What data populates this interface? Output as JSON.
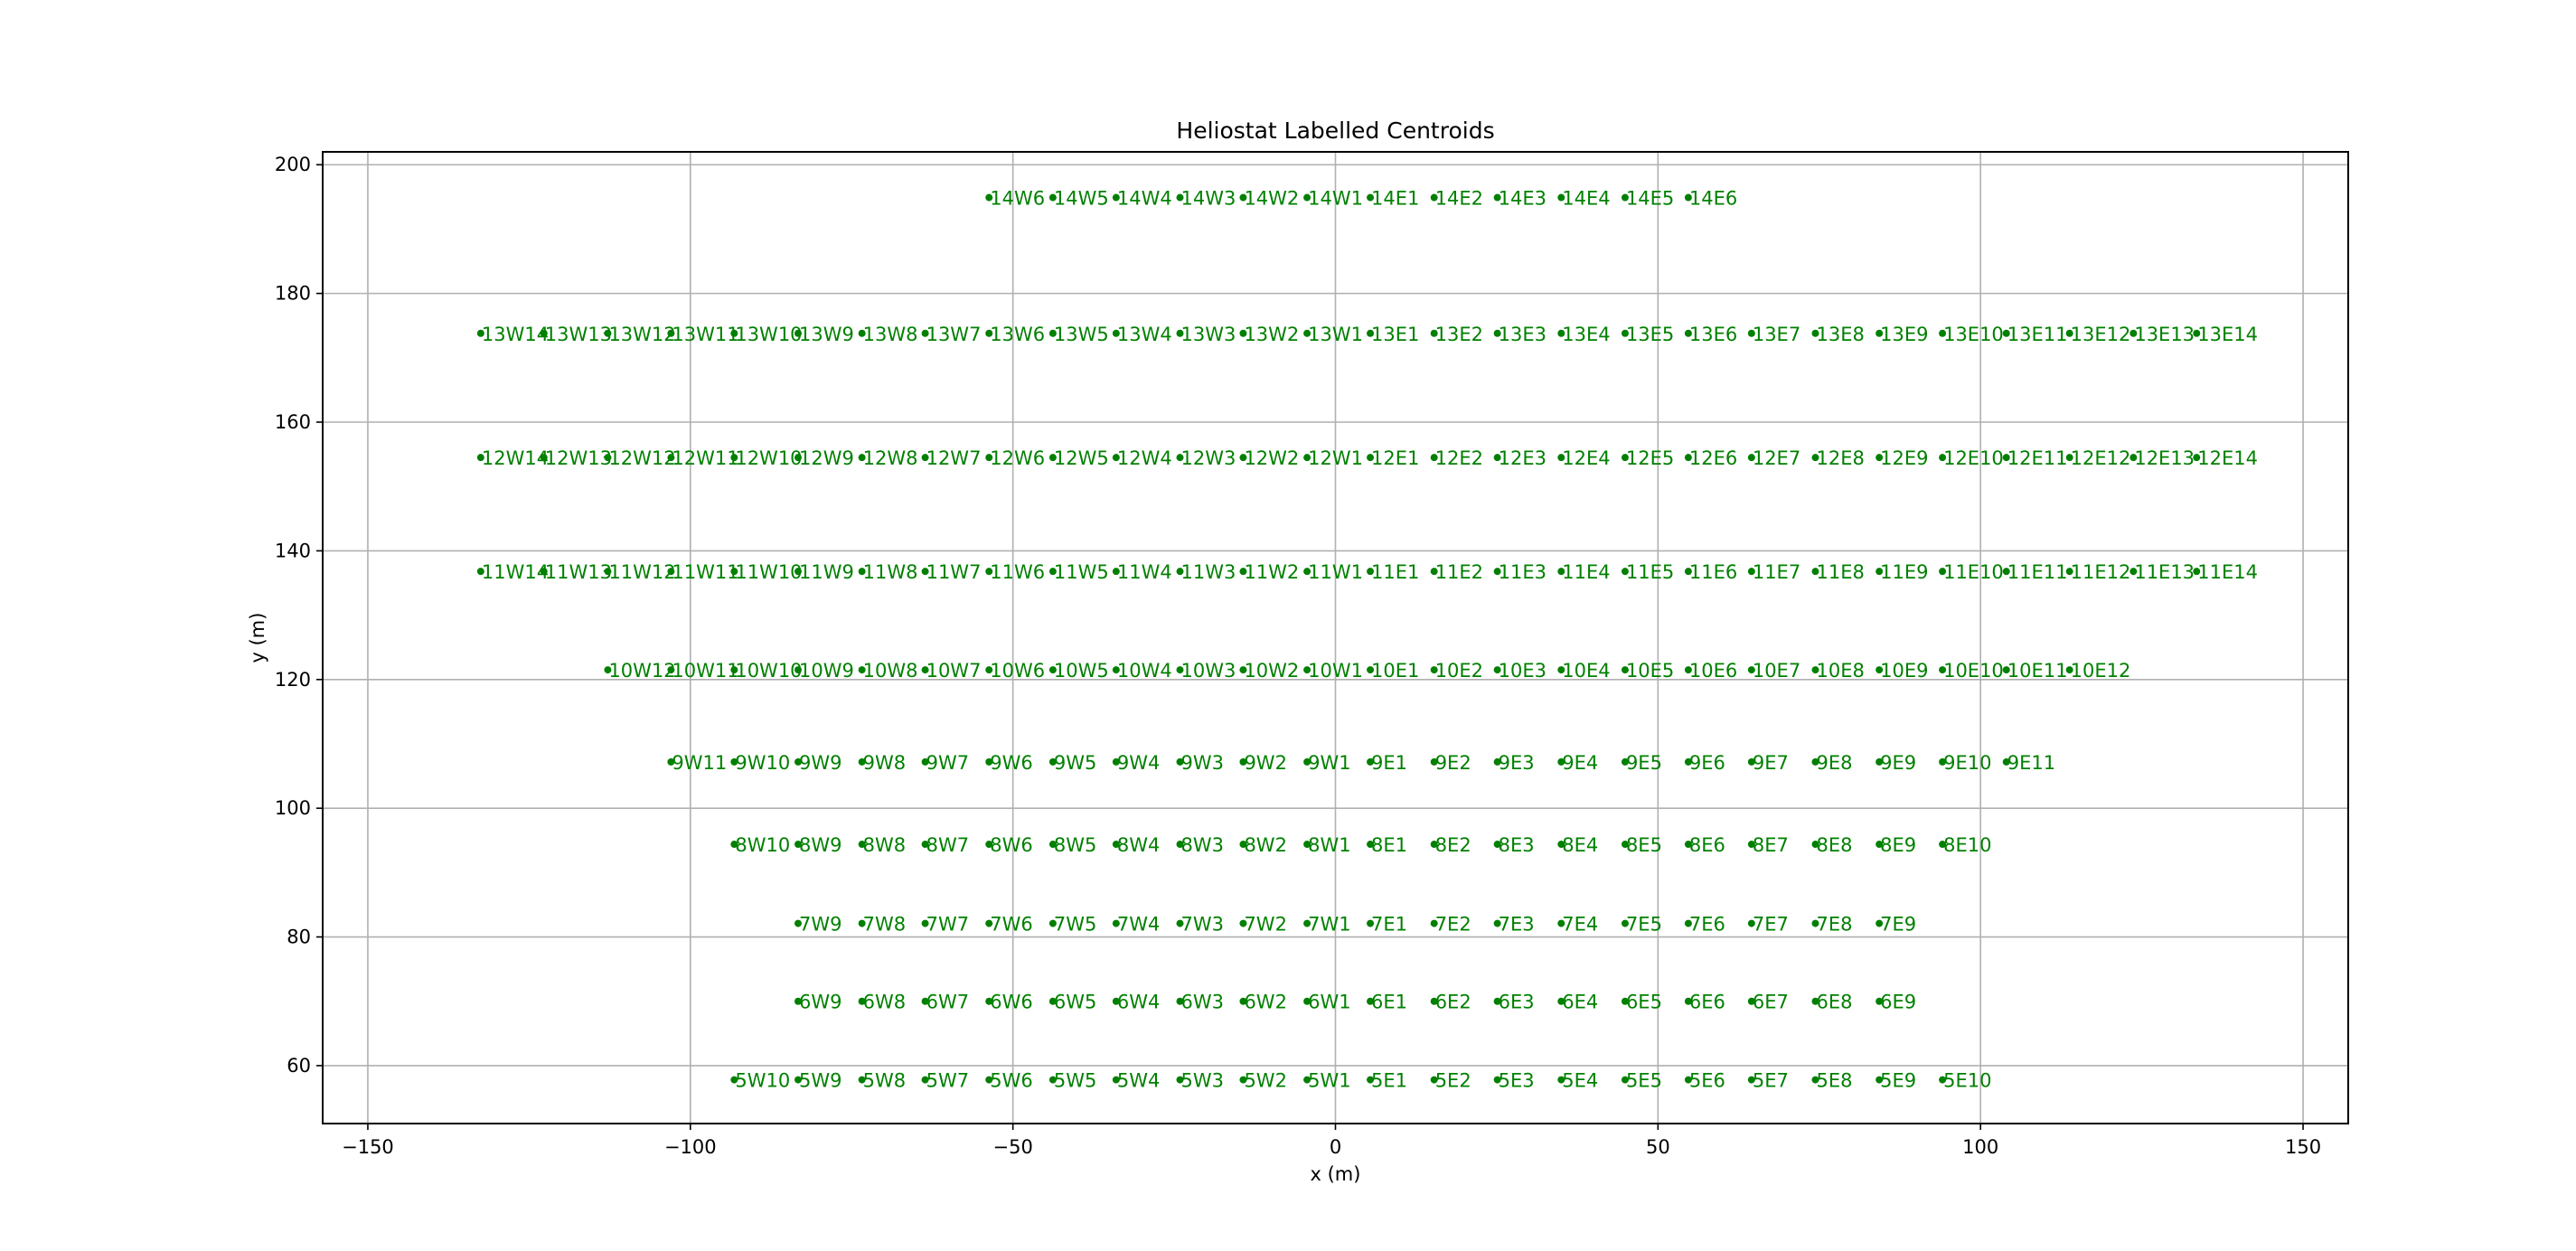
{
  "chart_data": {
    "type": "scatter",
    "title": "Heliostat Labelled Centroids",
    "xlabel": "x (m)",
    "ylabel": "y (m)",
    "xlim": [
      -157,
      157
    ],
    "ylim": [
      51,
      202
    ],
    "xticks": [
      -150,
      -100,
      -50,
      0,
      50,
      100,
      150
    ],
    "yticks": [
      60,
      80,
      100,
      120,
      140,
      160,
      180,
      200
    ],
    "grid": true,
    "marker_color": "#008000",
    "rows": [
      {
        "y": 194.9,
        "x": [
          -53.7,
          -43.8,
          -34.0,
          -24.1,
          -14.3,
          -4.4,
          5.4,
          15.3,
          25.1,
          35.0,
          44.9,
          54.7
        ],
        "labels": [
          "14W6",
          "14W5",
          "14W4",
          "14W3",
          "14W2",
          "14W1",
          "14E1",
          "14E2",
          "14E3",
          "14E4",
          "14E5",
          "14E6"
        ]
      },
      {
        "y": 173.8,
        "x": [
          -132.5,
          -122.7,
          -112.8,
          -103.0,
          -93.2,
          -83.3,
          -73.4,
          -63.6,
          -53.7,
          -43.8,
          -34.0,
          -24.1,
          -14.3,
          -4.4,
          5.4,
          15.3,
          25.1,
          35.0,
          44.9,
          54.7,
          64.5,
          74.4,
          84.3,
          94.1,
          104.0,
          113.8,
          123.7,
          133.5
        ],
        "labels": [
          "13W14",
          "13W13",
          "13W12",
          "13W11",
          "13W10",
          "13W9",
          "13W8",
          "13W7",
          "13W6",
          "13W5",
          "13W4",
          "13W3",
          "13W2",
          "13W1",
          "13E1",
          "13E2",
          "13E3",
          "13E4",
          "13E5",
          "13E6",
          "13E7",
          "13E8",
          "13E9",
          "13E10",
          "13E11",
          "13E12",
          "13E13",
          "13E14"
        ]
      },
      {
        "y": 154.5,
        "x": [
          -132.5,
          -122.7,
          -112.8,
          -103.0,
          -93.2,
          -83.3,
          -73.4,
          -63.6,
          -53.7,
          -43.8,
          -34.0,
          -24.1,
          -14.3,
          -4.4,
          5.4,
          15.3,
          25.1,
          35.0,
          44.9,
          54.7,
          64.5,
          74.4,
          84.3,
          94.1,
          104.0,
          113.8,
          123.7,
          133.5
        ],
        "labels": [
          "12W14",
          "12W13",
          "12W12",
          "12W11",
          "12W10",
          "12W9",
          "12W8",
          "12W7",
          "12W6",
          "12W5",
          "12W4",
          "12W3",
          "12W2",
          "12W1",
          "12E1",
          "12E2",
          "12E3",
          "12E4",
          "12E5",
          "12E6",
          "12E7",
          "12E8",
          "12E9",
          "12E10",
          "12E11",
          "12E12",
          "12E13",
          "12E14"
        ]
      },
      {
        "y": 136.8,
        "x": [
          -132.5,
          -122.7,
          -112.8,
          -103.0,
          -93.2,
          -83.3,
          -73.4,
          -63.6,
          -53.7,
          -43.8,
          -34.0,
          -24.1,
          -14.3,
          -4.4,
          5.4,
          15.3,
          25.1,
          35.0,
          44.9,
          54.7,
          64.5,
          74.4,
          84.3,
          94.1,
          104.0,
          113.8,
          123.7,
          133.5
        ],
        "labels": [
          "11W14",
          "11W13",
          "11W12",
          "11W11",
          "11W10",
          "11W9",
          "11W8",
          "11W7",
          "11W6",
          "11W5",
          "11W4",
          "11W3",
          "11W2",
          "11W1",
          "11E1",
          "11E2",
          "11E3",
          "11E4",
          "11E5",
          "11E6",
          "11E7",
          "11E8",
          "11E9",
          "11E10",
          "11E11",
          "11E12",
          "11E13",
          "11E14"
        ]
      },
      {
        "y": 121.5,
        "x": [
          -112.8,
          -103.0,
          -93.2,
          -83.3,
          -73.4,
          -63.6,
          -53.7,
          -43.8,
          -34.0,
          -24.1,
          -14.3,
          -4.4,
          5.4,
          15.3,
          25.1,
          35.0,
          44.9,
          54.7,
          64.5,
          74.4,
          84.3,
          94.1,
          104.0,
          113.8
        ],
        "labels": [
          "10W12",
          "10W11",
          "10W10",
          "10W9",
          "10W8",
          "10W7",
          "10W6",
          "10W5",
          "10W4",
          "10W3",
          "10W2",
          "10W1",
          "10E1",
          "10E2",
          "10E3",
          "10E4",
          "10E5",
          "10E6",
          "10E7",
          "10E8",
          "10E9",
          "10E10",
          "10E11",
          "10E12"
        ]
      },
      {
        "y": 107.2,
        "x": [
          -103.0,
          -93.2,
          -83.3,
          -73.4,
          -63.6,
          -53.7,
          -43.8,
          -34.0,
          -24.1,
          -14.3,
          -4.4,
          5.4,
          15.3,
          25.1,
          35.0,
          44.9,
          54.7,
          64.5,
          74.4,
          84.3,
          94.1,
          104.0
        ],
        "labels": [
          "9W11",
          "9W10",
          "9W9",
          "9W8",
          "9W7",
          "9W6",
          "9W5",
          "9W4",
          "9W3",
          "9W2",
          "9W1",
          "9E1",
          "9E2",
          "9E3",
          "9E4",
          "9E5",
          "9E6",
          "9E7",
          "9E8",
          "9E9",
          "9E10",
          "9E11"
        ]
      },
      {
        "y": 94.4,
        "x": [
          -93.2,
          -83.3,
          -73.4,
          -63.6,
          -53.7,
          -43.8,
          -34.0,
          -24.1,
          -14.3,
          -4.4,
          5.4,
          15.3,
          25.1,
          35.0,
          44.9,
          54.7,
          64.5,
          74.4,
          84.3,
          94.1
        ],
        "labels": [
          "8W10",
          "8W9",
          "8W8",
          "8W7",
          "8W6",
          "8W5",
          "8W4",
          "8W3",
          "8W2",
          "8W1",
          "8E1",
          "8E2",
          "8E3",
          "8E4",
          "8E5",
          "8E6",
          "8E7",
          "8E8",
          "8E9",
          "8E10"
        ]
      },
      {
        "y": 82.1,
        "x": [
          -83.3,
          -73.4,
          -63.6,
          -53.7,
          -43.8,
          -34.0,
          -24.1,
          -14.3,
          -4.4,
          5.4,
          15.3,
          25.1,
          35.0,
          44.9,
          54.7,
          64.5,
          74.4,
          84.3
        ],
        "labels": [
          "7W9",
          "7W8",
          "7W7",
          "7W6",
          "7W5",
          "7W4",
          "7W3",
          "7W2",
          "7W1",
          "7E1",
          "7E2",
          "7E3",
          "7E4",
          "7E5",
          "7E6",
          "7E7",
          "7E8",
          "7E9"
        ]
      },
      {
        "y": 70.0,
        "x": [
          -83.3,
          -73.4,
          -63.6,
          -53.7,
          -43.8,
          -34.0,
          -24.1,
          -14.3,
          -4.4,
          5.4,
          15.3,
          25.1,
          35.0,
          44.9,
          54.7,
          64.5,
          74.4,
          84.3
        ],
        "labels": [
          "6W9",
          "6W8",
          "6W7",
          "6W6",
          "6W5",
          "6W4",
          "6W3",
          "6W2",
          "6W1",
          "6E1",
          "6E2",
          "6E3",
          "6E4",
          "6E5",
          "6E6",
          "6E7",
          "6E8",
          "6E9"
        ]
      },
      {
        "y": 57.8,
        "x": [
          -93.2,
          -83.3,
          -73.4,
          -63.6,
          -53.7,
          -43.8,
          -34.0,
          -24.1,
          -14.3,
          -4.4,
          5.4,
          15.3,
          25.1,
          35.0,
          44.9,
          54.7,
          64.5,
          74.4,
          84.3,
          94.1
        ],
        "labels": [
          "5W10",
          "5W9",
          "5W8",
          "5W7",
          "5W6",
          "5W5",
          "5W4",
          "5W3",
          "5W2",
          "5W1",
          "5E1",
          "5E2",
          "5E3",
          "5E4",
          "5E5",
          "5E6",
          "5E7",
          "5E8",
          "5E9",
          "5E10"
        ]
      }
    ]
  }
}
